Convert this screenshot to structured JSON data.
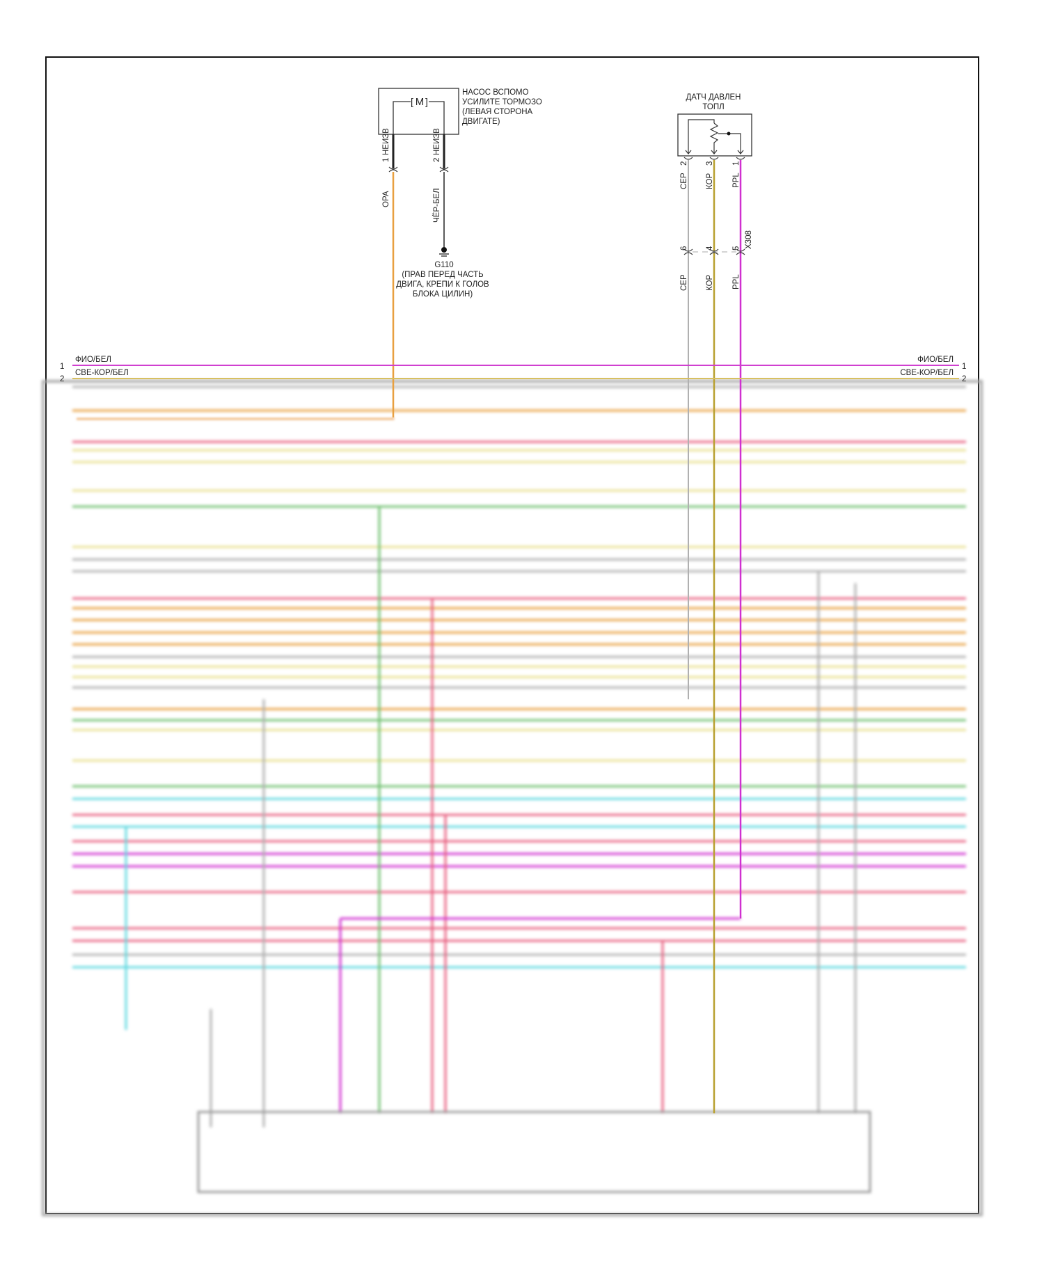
{
  "pump": {
    "motor_symbol": "M",
    "label_lines": [
      "НАСОС ВСПОМО",
      "УСИЛИТЕ ТОРМОЗО",
      "(ЛЕВАЯ СТОРОНА",
      "ДВИГАТЕ)"
    ],
    "pin1": {
      "num": "1",
      "id": "НЕИЗВ",
      "color": "ОРА"
    },
    "pin2": {
      "num": "2",
      "id": "НЕИЗВ",
      "color": "ЧЁР-БЕЛ"
    }
  },
  "ground": {
    "id": "G110",
    "label_lines": [
      "(ПРАВ ПЕРЕД ЧАСТЬ",
      "ДВИГА, КРЕПИ К ГОЛОВ",
      "БЛОКА ЦИЛИН)"
    ]
  },
  "sensor": {
    "label_lines": [
      "ДАТЧ ДАВЛЕН",
      "ТОПЛ"
    ],
    "pins": [
      {
        "num": "2",
        "color": "СЕР",
        "x308_pin": "6",
        "x308_color": "СЕР"
      },
      {
        "num": "3",
        "color": "КОР",
        "x308_pin": "4",
        "x308_color": "КОР"
      },
      {
        "num": "1",
        "color": "PPL",
        "x308_pin": "5",
        "x308_color": "PPL"
      }
    ],
    "connector": "X308"
  },
  "bus": [
    {
      "num": "1",
      "label": "ФИО/БЕЛ",
      "color": "#d040d0"
    },
    {
      "num": "2",
      "label": "СВЕ-КОР/БЕЛ",
      "color": "#d8c060"
    }
  ],
  "colors": {
    "orange": "#e8a040",
    "black": "#222222",
    "gray": "#b0b0b0",
    "brown": "#b8a030",
    "purple": "#d030d0",
    "pink": "#e86080",
    "green": "#70c070",
    "cyan": "#60d8e0",
    "yellow": "#e8e090"
  }
}
